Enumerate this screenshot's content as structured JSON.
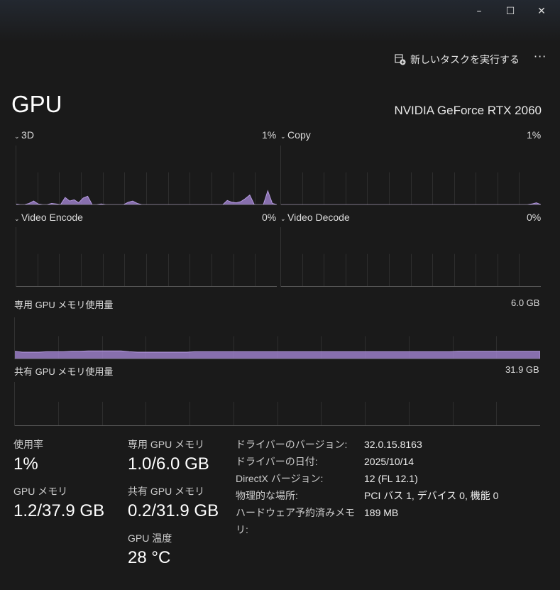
{
  "window": {
    "minimize": "–",
    "maximize": "☐",
    "close": "✕"
  },
  "toolbar": {
    "run_task": "新しいタスクを実行する",
    "more": "···",
    "run_task_icon": "new-task-icon"
  },
  "header": {
    "title": "GPU",
    "device_name": "NVIDIA GeForce RTX 2060"
  },
  "accent": "#9b7fc8",
  "graphs": [
    {
      "label": "3D",
      "value": "1%",
      "max_pct": 100,
      "samples": [
        2,
        1,
        1,
        3,
        7,
        2,
        1,
        1,
        3,
        2,
        1,
        13,
        7,
        9,
        4,
        12,
        15,
        1,
        1,
        2,
        1,
        1,
        1,
        1,
        1,
        5,
        7,
        3,
        1,
        1,
        1,
        1,
        1,
        1,
        1,
        1,
        1,
        1,
        1,
        1,
        1,
        1,
        1,
        1,
        1,
        1,
        1,
        8,
        5,
        4,
        6,
        11,
        17,
        1,
        1,
        1,
        24,
        3,
        1
      ]
    },
    {
      "label": "Copy",
      "value": "1%",
      "max_pct": 100,
      "samples": [
        1,
        1,
        1,
        1,
        1,
        1,
        1,
        1,
        1,
        1,
        1,
        1,
        1,
        1,
        1,
        1,
        1,
        1,
        1,
        1,
        1,
        1,
        1,
        1,
        1,
        1,
        1,
        1,
        1,
        1,
        1,
        1,
        1,
        1,
        1,
        1,
        1,
        1,
        1,
        1,
        1,
        1,
        1,
        1,
        1,
        1,
        1,
        1,
        1,
        1,
        1,
        1,
        1,
        1,
        1,
        1,
        2,
        4,
        1
      ]
    },
    {
      "label": "Video Encode",
      "value": "0%",
      "max_pct": 100,
      "samples": [
        0,
        0
      ]
    },
    {
      "label": "Video Decode",
      "value": "0%",
      "max_pct": 100,
      "samples": [
        0,
        0
      ]
    }
  ],
  "memory_graphs": [
    {
      "label": "専用 GPU メモリ使用量",
      "value": "6.0 GB",
      "samples": [
        19,
        17,
        17,
        17,
        18,
        18,
        18,
        19,
        19,
        20,
        20,
        20,
        20,
        20,
        18,
        17,
        17,
        17,
        17,
        17,
        17,
        17,
        18,
        18,
        18,
        18,
        18,
        18,
        18,
        18,
        18,
        18,
        18,
        18,
        18,
        18,
        18,
        18,
        18,
        18,
        18,
        18,
        18,
        18,
        18,
        18,
        18,
        18,
        18,
        18,
        18,
        18,
        18,
        18,
        19,
        19,
        19,
        19,
        19,
        19,
        19,
        19,
        19,
        19,
        19
      ]
    },
    {
      "label": "共有 GPU メモリ使用量",
      "value": "31.9 GB",
      "samples": [
        0.5,
        0.5
      ]
    }
  ],
  "stats": {
    "usage": {
      "label": "使用率",
      "value": "1%"
    },
    "gpu_memory": {
      "label": "GPU メモリ",
      "value": "1.2/37.9 GB"
    },
    "dedicated": {
      "label": "専用 GPU メモリ",
      "value": "1.0/6.0 GB"
    },
    "shared": {
      "label": "共有 GPU メモリ",
      "value": "0.2/31.9 GB"
    },
    "temp": {
      "label": "GPU 温度",
      "value": "28 °C"
    }
  },
  "info": [
    {
      "k": "ドライバーのバージョン:",
      "v": "32.0.15.8163"
    },
    {
      "k": "ドライバーの日付:",
      "v": "2025/10/14"
    },
    {
      "k": "DirectX バージョン:",
      "v": "12 (FL 12.1)"
    },
    {
      "k": "物理的な場所:",
      "v": "PCI バス 1, デバイス 0, 機能 0"
    },
    {
      "k": "ハードウェア予約済みメモリ:",
      "v": "189 MB"
    }
  ]
}
